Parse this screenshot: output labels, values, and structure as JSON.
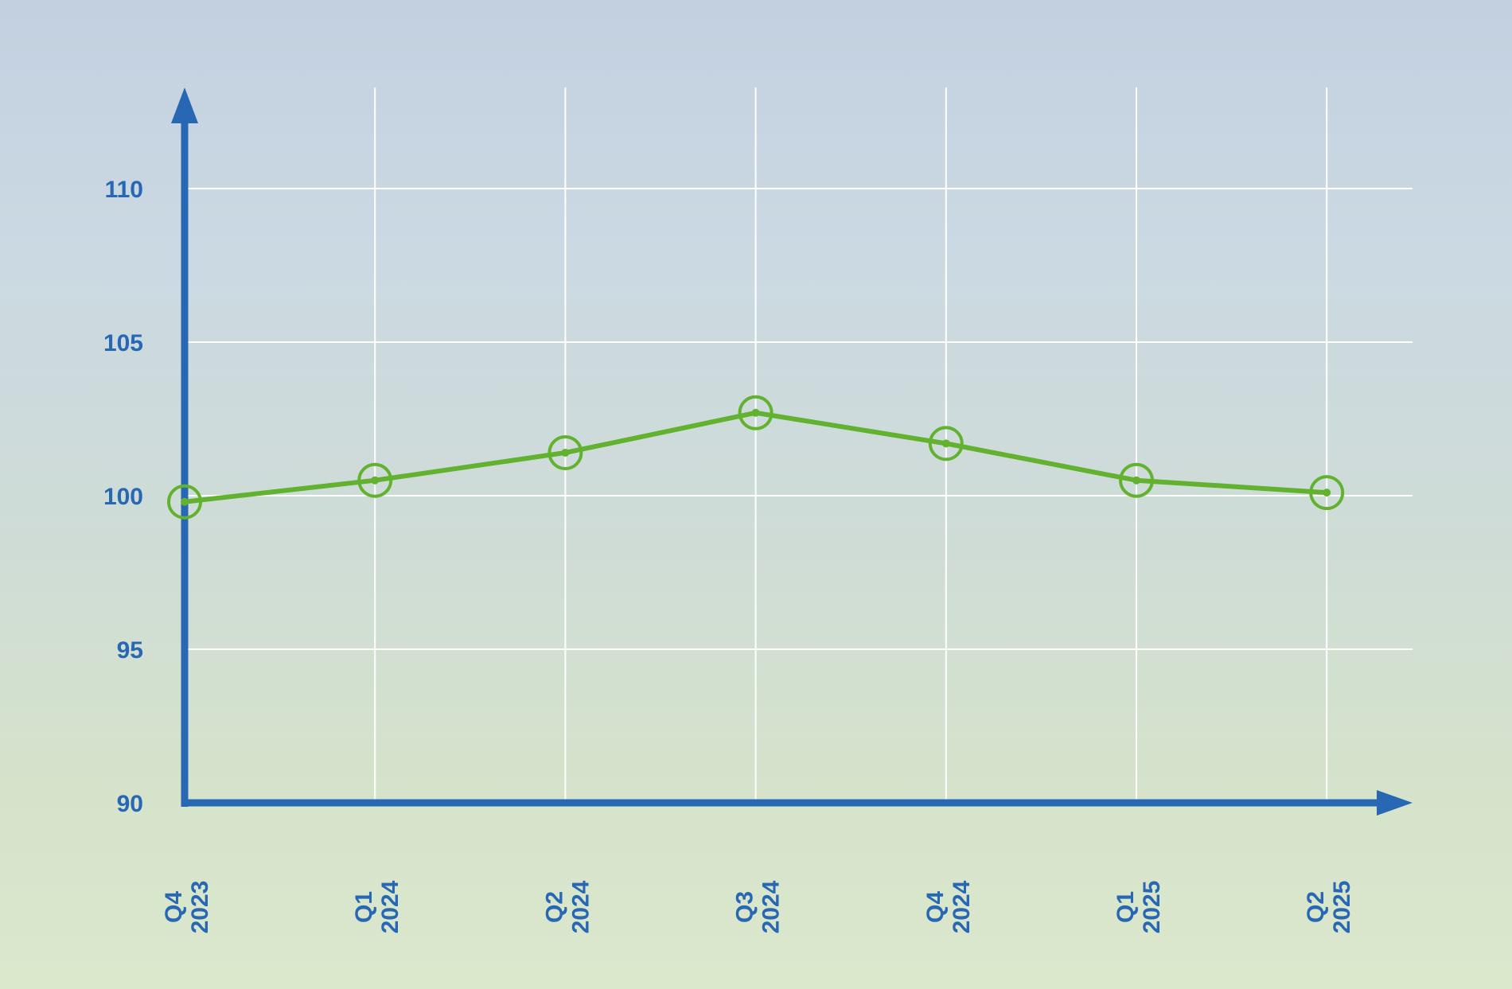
{
  "chart_data": {
    "type": "line",
    "title": "",
    "xlabel": "",
    "ylabel": "",
    "categories": [
      "Q4 2023",
      "Q1 2024",
      "Q2 2024",
      "Q3 2024",
      "Q4 2024",
      "Q1 2025",
      "Q2 2025"
    ],
    "category_lines": [
      [
        "Q4",
        "2023"
      ],
      [
        "Q1",
        "2024"
      ],
      [
        "Q2",
        "2024"
      ],
      [
        "Q3",
        "2024"
      ],
      [
        "Q4",
        "2024"
      ],
      [
        "Q1",
        "2025"
      ],
      [
        "Q2",
        "2025"
      ]
    ],
    "values": [
      99.8,
      100.5,
      101.4,
      102.7,
      101.7,
      100.5,
      100.1
    ],
    "ylim": [
      90,
      110
    ],
    "yticks": [
      90,
      95,
      100,
      105,
      110
    ],
    "grid": true,
    "colors": {
      "axis": "#2767b4",
      "line": "#62b22f",
      "grid": "#ffffff"
    }
  }
}
